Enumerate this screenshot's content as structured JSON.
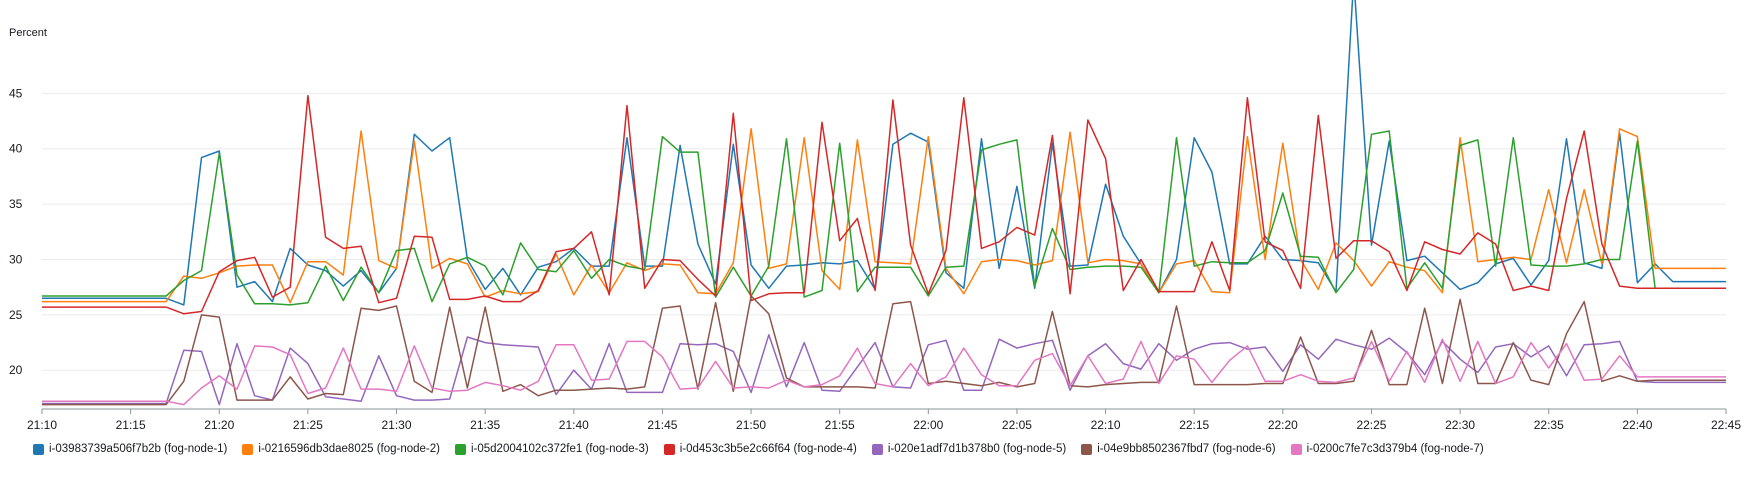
{
  "chart_data": {
    "type": "line",
    "ylabel": "Percent",
    "ylim": [
      16.5,
      50
    ],
    "yticks": [
      20,
      25,
      30,
      35,
      40,
      45
    ],
    "xlim": [
      "21:10",
      "22:45"
    ],
    "xticks": [
      "21:10",
      "21:15",
      "21:20",
      "21:25",
      "21:30",
      "21:35",
      "21:40",
      "21:45",
      "21:50",
      "21:55",
      "22:00",
      "22:05",
      "22:10",
      "22:15",
      "22:20",
      "22:25",
      "22:30",
      "22:35",
      "22:40",
      "22:45"
    ],
    "grid": "horizontal",
    "legend_position": "bottom",
    "x": [
      "21:10",
      "21:17",
      "21:18",
      "21:19",
      "21:20",
      "21:21",
      "21:22",
      "21:23",
      "21:24",
      "21:25",
      "21:26",
      "21:27",
      "21:28",
      "21:29",
      "21:30",
      "21:31",
      "21:32",
      "21:33",
      "21:34",
      "21:35",
      "21:36",
      "21:37",
      "21:38",
      "21:39",
      "21:40",
      "21:41",
      "21:42",
      "21:43",
      "21:44",
      "21:45",
      "21:46",
      "21:47",
      "21:48",
      "21:49",
      "21:50",
      "21:51",
      "21:52",
      "21:53",
      "21:54",
      "21:55",
      "21:56",
      "21:57",
      "21:58",
      "21:59",
      "22:00",
      "22:01",
      "22:02",
      "22:03",
      "22:04",
      "22:05",
      "22:06",
      "22:07",
      "22:08",
      "22:09",
      "22:10",
      "22:11",
      "22:12",
      "22:13",
      "22:14",
      "22:15",
      "22:16",
      "22:17",
      "22:18",
      "22:19",
      "22:20",
      "22:21",
      "22:22",
      "22:23",
      "22:24",
      "22:25",
      "22:26",
      "22:27",
      "22:28",
      "22:29",
      "22:30",
      "22:31",
      "22:32",
      "22:33",
      "22:34",
      "22:35",
      "22:36",
      "22:37",
      "22:38",
      "22:39",
      "22:40",
      "22:41",
      "22:42",
      "22:45"
    ],
    "series": [
      {
        "name": "i-03983739a506f7b2b (fog-node-1)",
        "color": "#1f77b4",
        "values": [
          26.5,
          26.5,
          25.9,
          39.2,
          39.8,
          27.5,
          28.0,
          26.2,
          31.0,
          29.5,
          29.0,
          27.6,
          29.0,
          27.0,
          29.2,
          41.3,
          39.8,
          41.0,
          30.0,
          27.3,
          29.2,
          26.8,
          29.3,
          29.8,
          31.0,
          29.4,
          29.4,
          41.0,
          29.4,
          29.4,
          40.3,
          31.4,
          27.8,
          40.4,
          29.5,
          27.4,
          29.4,
          29.5,
          29.7,
          29.6,
          29.9,
          27.3,
          40.4,
          41.4,
          40.6,
          28.8,
          27.4,
          40.9,
          29.2,
          36.6,
          27.4,
          40.5,
          29.4,
          29.5,
          36.8,
          32.1,
          29.6,
          27.0,
          30.0,
          41.0,
          37.9,
          29.6,
          29.6,
          32.1,
          30.0,
          29.9,
          29.7,
          27.1,
          55.4,
          31.3,
          40.7,
          29.9,
          30.3,
          28.8,
          27.3,
          27.9,
          29.6,
          30.1,
          27.7,
          29.9,
          40.9,
          29.7,
          29.2,
          41.4,
          27.9,
          29.6,
          28.0,
          28.0
        ]
      },
      {
        "name": "i-0216596db3dae8025 (fog-node-2)",
        "color": "#ff7f0e",
        "values": [
          26.2,
          26.2,
          28.5,
          28.3,
          28.8,
          29.4,
          29.5,
          29.5,
          26.1,
          29.8,
          29.8,
          28.6,
          41.6,
          29.9,
          29.2,
          40.7,
          29.2,
          30.1,
          29.6,
          26.6,
          27.2,
          26.9,
          27.1,
          30.5,
          26.8,
          29.5,
          27.0,
          29.7,
          29.0,
          29.6,
          29.5,
          27.0,
          26.9,
          29.7,
          41.8,
          29.2,
          29.6,
          41.0,
          29.0,
          27.3,
          40.8,
          29.8,
          29.7,
          29.6,
          41.1,
          29.2,
          26.9,
          29.8,
          30.0,
          29.9,
          29.5,
          29.9,
          41.5,
          29.7,
          30.0,
          29.9,
          29.6,
          27.0,
          29.6,
          29.9,
          27.1,
          27.0,
          41.1,
          30.0,
          40.5,
          30.0,
          27.3,
          31.5,
          29.9,
          27.6,
          29.8,
          29.3,
          29.0,
          27.0,
          41.0,
          29.8,
          30.0,
          30.2,
          30.0,
          36.3,
          29.7,
          36.3,
          29.6,
          41.8,
          41.1,
          29.2,
          29.2,
          29.2
        ]
      },
      {
        "name": "i-05d2004102c372fe1 (fog-node-3)",
        "color": "#2ca02c",
        "values": [
          26.7,
          26.7,
          28.1,
          29.0,
          39.6,
          28.6,
          26.0,
          26.0,
          25.9,
          26.1,
          29.4,
          26.3,
          29.3,
          27.0,
          30.8,
          31.0,
          26.2,
          29.6,
          30.2,
          29.4,
          26.8,
          31.5,
          29.1,
          28.9,
          30.8,
          28.3,
          30.0,
          29.4,
          29.1,
          41.1,
          39.7,
          39.7,
          26.6,
          29.3,
          26.7,
          29.4,
          40.9,
          26.6,
          27.2,
          40.5,
          27.1,
          29.3,
          29.3,
          29.3,
          26.7,
          29.3,
          29.4,
          39.9,
          40.4,
          40.8,
          27.6,
          32.8,
          29.1,
          29.3,
          29.4,
          29.4,
          29.3,
          27.0,
          41.0,
          29.4,
          29.8,
          29.7,
          29.7,
          30.8,
          36.0,
          30.3,
          30.2,
          27.0,
          29.1,
          41.3,
          41.6,
          27.4,
          29.7,
          27.4,
          40.3,
          40.8,
          29.4,
          41.0,
          29.5,
          29.4,
          29.4,
          29.6,
          30.0,
          30.0,
          40.7,
          27.4,
          27.4,
          27.4
        ]
      },
      {
        "name": "i-0d453c3b5e2c66f64 (fog-node-4)",
        "color": "#d62728",
        "values": [
          25.7,
          25.7,
          25.1,
          25.3,
          28.9,
          29.9,
          30.2,
          26.6,
          27.5,
          44.8,
          32.0,
          31.0,
          31.2,
          26.1,
          26.5,
          32.1,
          32.0,
          26.4,
          26.4,
          26.7,
          26.2,
          26.2,
          27.2,
          30.7,
          31.0,
          32.5,
          26.8,
          43.9,
          27.4,
          30.0,
          29.9,
          28.2,
          26.7,
          43.2,
          26.3,
          26.9,
          27.0,
          27.0,
          42.4,
          31.7,
          33.7,
          27.2,
          44.4,
          31.3,
          26.9,
          30.8,
          44.6,
          31.0,
          31.6,
          32.9,
          32.2,
          41.2,
          26.9,
          42.6,
          39.1,
          27.2,
          30.0,
          27.1,
          27.1,
          27.1,
          31.6,
          27.2,
          44.6,
          31.6,
          30.8,
          27.4,
          43.0,
          30.1,
          31.7,
          31.7,
          30.7,
          27.2,
          31.6,
          30.9,
          30.5,
          32.4,
          31.4,
          27.2,
          27.6,
          27.2,
          35.5,
          41.6,
          31.4,
          27.6,
          27.4,
          27.4,
          27.4,
          27.4
        ]
      },
      {
        "name": "i-020e1adf7d1b378b0 (fog-node-5)",
        "color": "#9467bd",
        "values": [
          17.0,
          17.0,
          21.8,
          21.7,
          16.9,
          22.4,
          17.7,
          17.3,
          22.0,
          20.6,
          17.6,
          17.4,
          17.2,
          21.3,
          17.7,
          17.3,
          17.3,
          17.4,
          23.0,
          22.5,
          22.3,
          22.2,
          22.1,
          17.8,
          20.0,
          18.3,
          22.4,
          18.0,
          18.0,
          18.0,
          22.4,
          22.3,
          22.4,
          21.7,
          18.0,
          23.2,
          18.5,
          22.5,
          18.2,
          18.1,
          20.3,
          22.5,
          18.5,
          18.4,
          22.3,
          22.7,
          18.2,
          18.2,
          22.8,
          22.0,
          22.4,
          22.7,
          18.2,
          21.3,
          22.4,
          20.6,
          20.1,
          22.4,
          20.9,
          21.9,
          22.4,
          22.5,
          21.9,
          22.1,
          19.9,
          22.3,
          21.0,
          22.8,
          22.3,
          21.9,
          22.9,
          21.6,
          19.6,
          22.6,
          21.0,
          19.8,
          22.1,
          22.4,
          21.2,
          22.2,
          19.5,
          22.3,
          22.4,
          22.6,
          19.0,
          18.9,
          18.9,
          18.9
        ]
      },
      {
        "name": "i-04e9bb8502367fbd7 (fog-node-6)",
        "color": "#8c564b",
        "values": [
          16.9,
          16.9,
          19.0,
          25.0,
          24.8,
          17.3,
          17.3,
          17.3,
          19.4,
          17.4,
          17.9,
          17.8,
          25.6,
          25.4,
          25.8,
          19.0,
          18.0,
          25.7,
          18.4,
          25.7,
          18.1,
          18.7,
          17.7,
          18.2,
          18.2,
          18.3,
          18.4,
          18.3,
          18.5,
          25.6,
          25.8,
          18.3,
          26.1,
          18.1,
          26.7,
          25.1,
          19.3,
          18.5,
          18.5,
          18.5,
          18.5,
          18.4,
          26.0,
          26.2,
          18.8,
          19.0,
          18.8,
          18.6,
          18.9,
          18.5,
          18.8,
          25.3,
          18.6,
          18.5,
          18.7,
          18.8,
          18.9,
          18.9,
          25.8,
          18.7,
          18.7,
          18.7,
          18.7,
          18.8,
          18.8,
          23.0,
          18.8,
          18.8,
          19.0,
          23.6,
          18.7,
          18.7,
          25.6,
          18.8,
          26.4,
          18.8,
          18.8,
          22.5,
          19.1,
          18.7,
          23.3,
          26.2,
          19.0,
          19.5,
          19.0,
          19.1,
          19.1,
          19.1
        ]
      },
      {
        "name": "i-0200c7fe7c3d379b4 (fog-node-7)",
        "color": "#e377c2",
        "values": [
          17.2,
          17.2,
          16.9,
          18.4,
          19.5,
          18.3,
          22.2,
          22.1,
          21.4,
          17.9,
          18.4,
          22.0,
          18.3,
          18.3,
          18.1,
          22.2,
          18.4,
          18.1,
          18.2,
          18.9,
          18.6,
          18.2,
          19.0,
          22.3,
          22.3,
          19.1,
          19.2,
          22.6,
          22.6,
          21.2,
          18.3,
          18.4,
          20.8,
          18.4,
          18.5,
          18.4,
          19.1,
          18.5,
          18.7,
          19.5,
          22.0,
          18.8,
          18.5,
          20.6,
          18.6,
          19.4,
          22.0,
          19.6,
          18.6,
          18.6,
          20.9,
          21.5,
          18.6,
          21.3,
          18.8,
          19.2,
          22.6,
          18.8,
          21.3,
          21.0,
          18.9,
          20.9,
          22.2,
          19.0,
          19.0,
          19.6,
          19.0,
          18.9,
          19.3,
          22.6,
          19.0,
          21.7,
          18.9,
          22.8,
          19.0,
          22.6,
          18.8,
          19.4,
          22.5,
          20.2,
          22.4,
          19.1,
          19.2,
          21.3,
          19.4,
          19.4,
          19.4,
          19.4
        ]
      }
    ]
  }
}
